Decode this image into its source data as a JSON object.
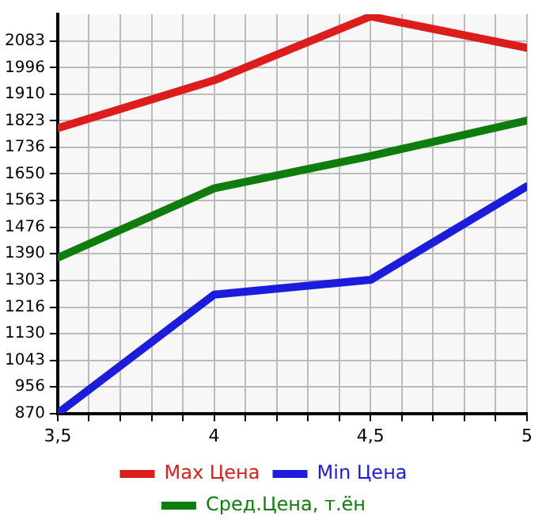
{
  "chart_data": {
    "type": "line",
    "x": [
      3.5,
      4,
      4.5,
      5
    ],
    "series": [
      {
        "name": "Max Цена",
        "color": "#dd1c1c",
        "values": [
          1799,
          1955,
          2163,
          2061
        ]
      },
      {
        "name": "Min Цена",
        "color": "#1c1cdd",
        "values": [
          870,
          1257,
          1305,
          1610
        ]
      },
      {
        "name": "Сред.Цена, т.ён",
        "color": "#0e7d0e",
        "values": [
          1377,
          1603,
          1708,
          1824
        ]
      }
    ],
    "xlim": [
      3.5,
      5
    ],
    "xticks": [
      {
        "value": 3.5,
        "label": "3,5"
      },
      {
        "value": 3.6,
        "label": null
      },
      {
        "value": 3.7,
        "label": null
      },
      {
        "value": 3.8,
        "label": null
      },
      {
        "value": 3.9,
        "label": null
      },
      4,
      {
        "value": 4.1,
        "label": null
      },
      {
        "value": 4.2,
        "label": null
      },
      {
        "value": 4.3,
        "label": null
      },
      {
        "value": 4.4,
        "label": null
      },
      {
        "value": 4.5,
        "label": "4,5"
      },
      {
        "value": 4.6,
        "label": null
      },
      {
        "value": 4.7,
        "label": null
      },
      {
        "value": 4.8,
        "label": null
      },
      {
        "value": 4.9,
        "label": null
      },
      5
    ],
    "ylim": [
      870,
      2170
    ],
    "yticks": [
      870,
      956,
      1043,
      1130,
      1216,
      1303,
      1390,
      1476,
      1563,
      1650,
      1736,
      1823,
      1910,
      1996,
      2083
    ],
    "grid": true,
    "legend": "bottom",
    "marker": "none",
    "line_style": "solid"
  }
}
